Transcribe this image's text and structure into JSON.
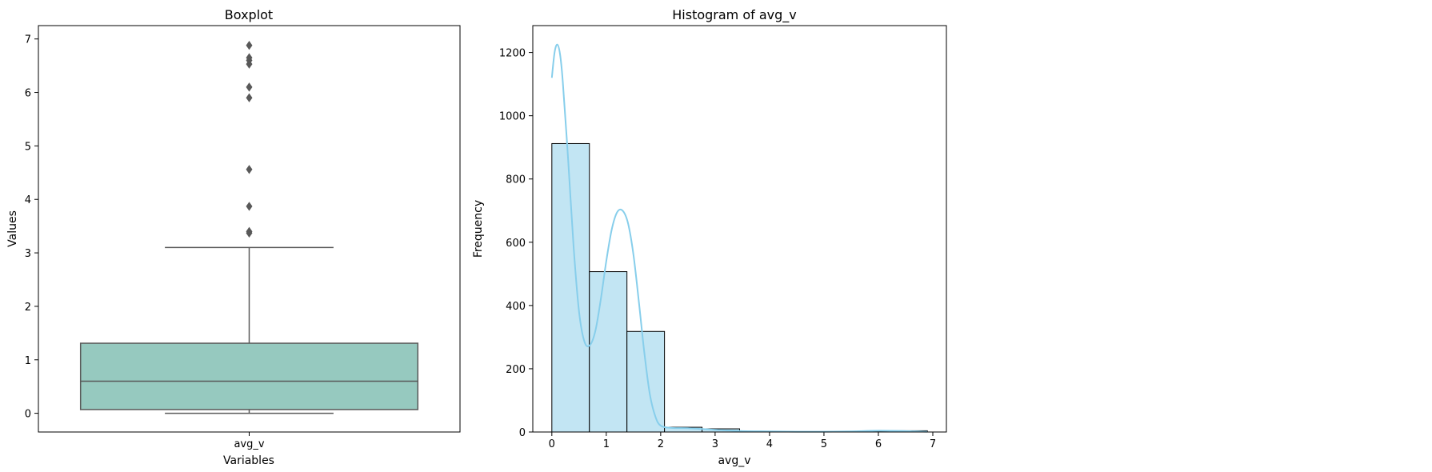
{
  "chart_data": [
    {
      "type": "box",
      "title": "Boxplot",
      "xlabel": "Variables",
      "ylabel": "Values",
      "categories": [
        "avg_v"
      ],
      "ylim": [
        -0.35,
        7.25
      ],
      "yticks": [
        0,
        1,
        2,
        3,
        4,
        5,
        6,
        7
      ],
      "box": {
        "whisker_low": 0.0,
        "q1": 0.07,
        "median": 0.6,
        "q3": 1.31,
        "whisker_high": 3.1
      },
      "outliers": [
        3.37,
        3.4,
        3.87,
        4.56,
        5.9,
        6.1,
        6.53,
        6.6,
        6.65,
        6.88
      ],
      "colors": {
        "box_fill": "#96C9BF",
        "line": "#595959",
        "outlier": "#595959"
      }
    },
    {
      "type": "histogram",
      "title": "Histogram of avg_v",
      "xlabel": "avg_v",
      "ylabel": "Frequency",
      "xlim": [
        -0.35,
        7.25
      ],
      "ylim": [
        0,
        1285
      ],
      "xticks": [
        0,
        1,
        2,
        3,
        4,
        5,
        6,
        7
      ],
      "yticks": [
        0,
        200,
        400,
        600,
        800,
        1000,
        1200
      ],
      "bin_edges": [
        0.0,
        0.69,
        1.38,
        2.07,
        2.76,
        3.45,
        4.14,
        4.83,
        5.52,
        6.21,
        6.9
      ],
      "counts": [
        912,
        507,
        318,
        15,
        10,
        1,
        1,
        0,
        2,
        4
      ],
      "kde": {
        "x": [
          0.0,
          0.05,
          0.1,
          0.15,
          0.2,
          0.3,
          0.4,
          0.5,
          0.6,
          0.7,
          0.8,
          0.9,
          1.0,
          1.1,
          1.2,
          1.3,
          1.4,
          1.5,
          1.6,
          1.7,
          1.8,
          1.9,
          2.0,
          2.2,
          2.5,
          3.0,
          3.5,
          4.0,
          4.5,
          5.0,
          5.5,
          6.0,
          6.5,
          6.9
        ],
        "y": [
          1120,
          1200,
          1225,
          1195,
          1110,
          860,
          585,
          380,
          285,
          275,
          320,
          420,
          540,
          640,
          695,
          700,
          660,
          560,
          410,
          250,
          120,
          50,
          20,
          13,
          12,
          7,
          3,
          2,
          1,
          1,
          2,
          4,
          3,
          1
        ]
      },
      "colors": {
        "bar_fill": "#C2E5F3",
        "bar_edge": "#000000",
        "kde_line": "#87CEEB"
      }
    }
  ]
}
